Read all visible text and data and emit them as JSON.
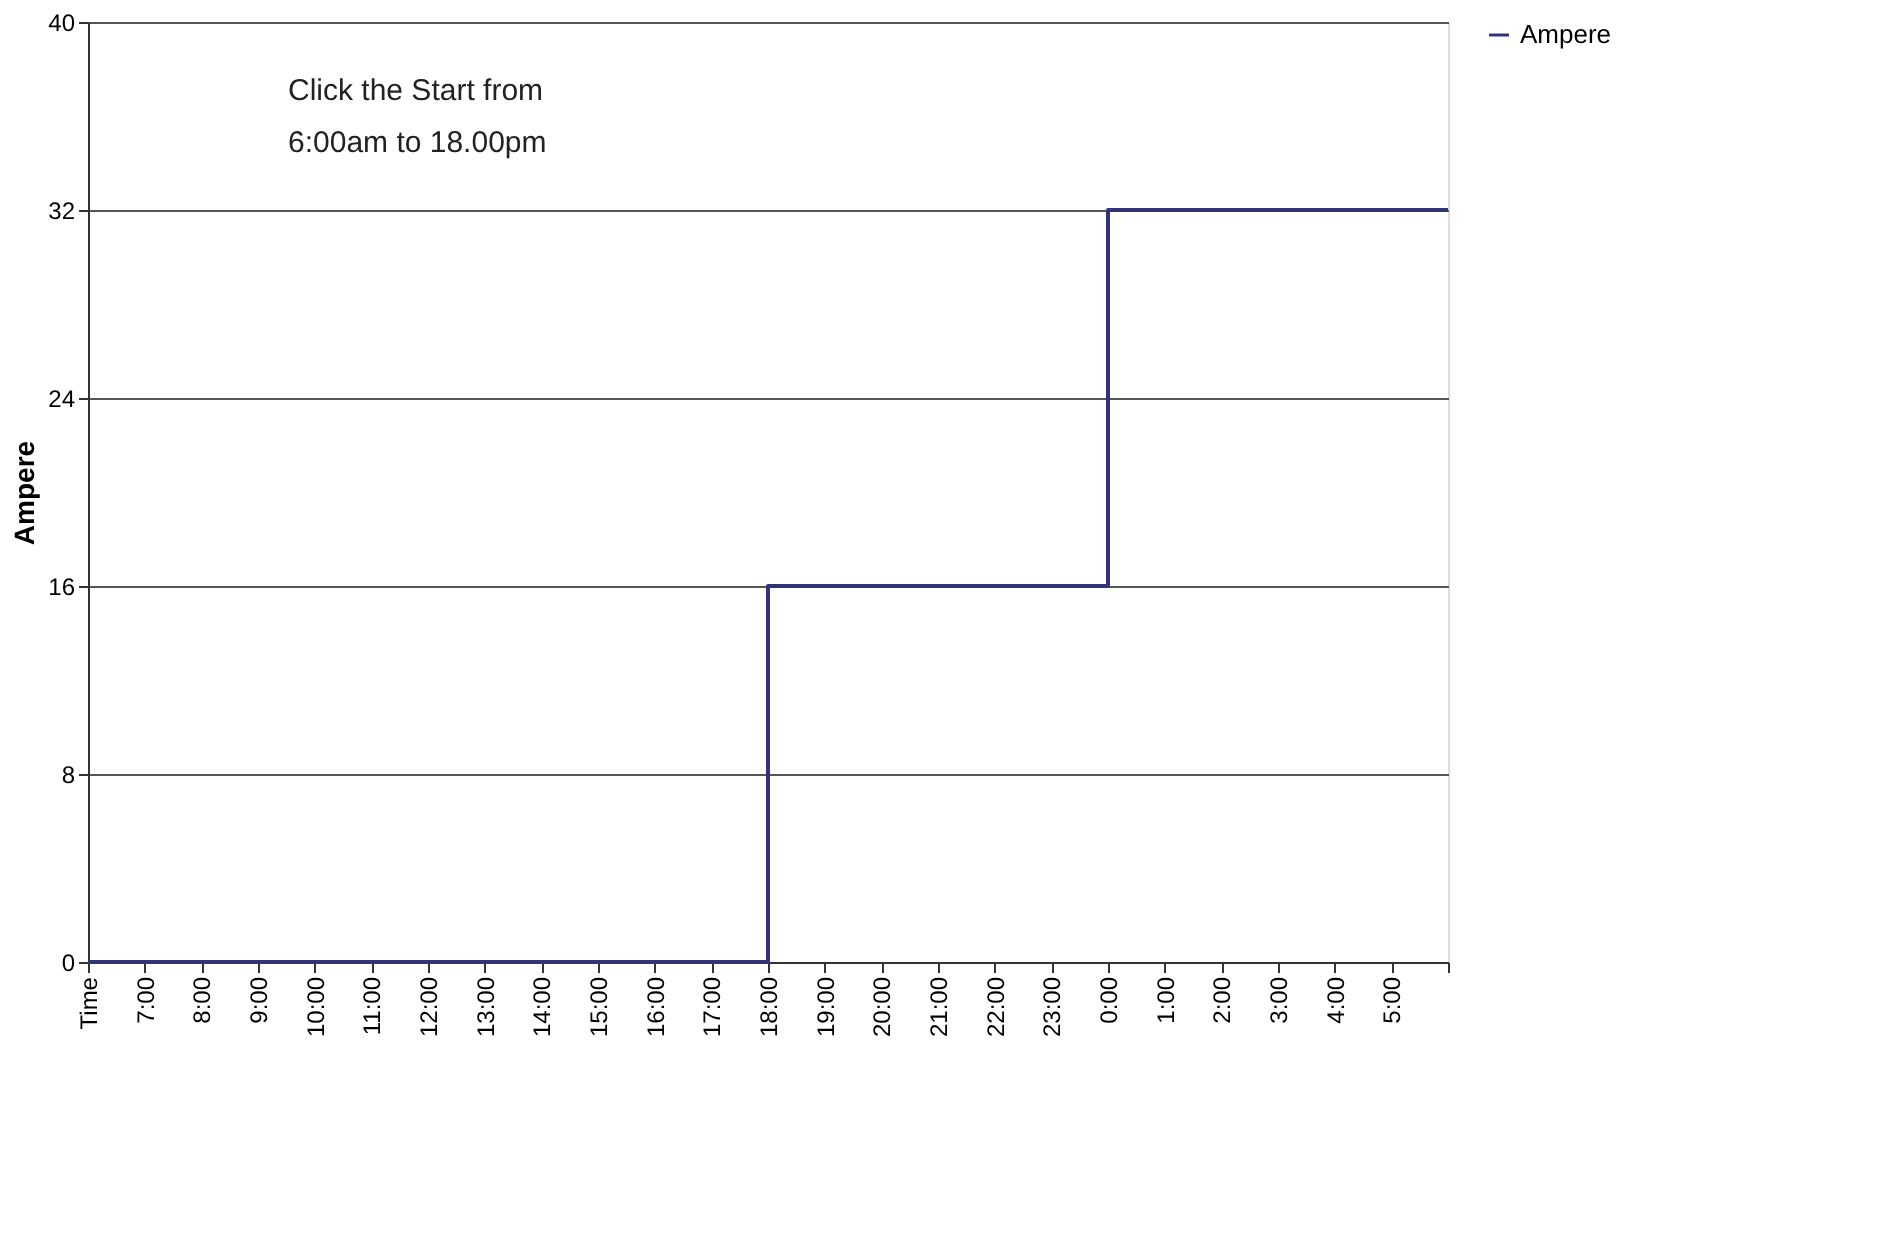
{
  "chart_data": {
    "type": "step",
    "ylabel": "Ampere",
    "categories": [
      "Time",
      "7:00",
      "8:00",
      "9:00",
      "10:00",
      "11:00",
      "12:00",
      "13:00",
      "14:00",
      "15:00",
      "16:00",
      "17:00",
      "18:00",
      "19:00",
      "20:00",
      "21:00",
      "22:00",
      "23:00",
      "0:00",
      "1:00",
      "2:00",
      "3:00",
      "4:00",
      "5:00",
      null
    ],
    "series": [
      {
        "name": "Ampere",
        "color": "#33337a",
        "values": [
          0,
          0,
          0,
          0,
          0,
          0,
          0,
          0,
          0,
          0,
          0,
          0,
          16,
          16,
          16,
          16,
          16,
          16,
          32,
          32,
          32,
          32,
          32,
          32,
          32
        ]
      }
    ],
    "ylim": [
      0,
      40
    ],
    "yticks": [
      0,
      8,
      16,
      24,
      32,
      40
    ],
    "grid": "y",
    "legend": "right",
    "annotations": [
      "Click the Start from 6:00am to 18.00pm"
    ]
  }
}
